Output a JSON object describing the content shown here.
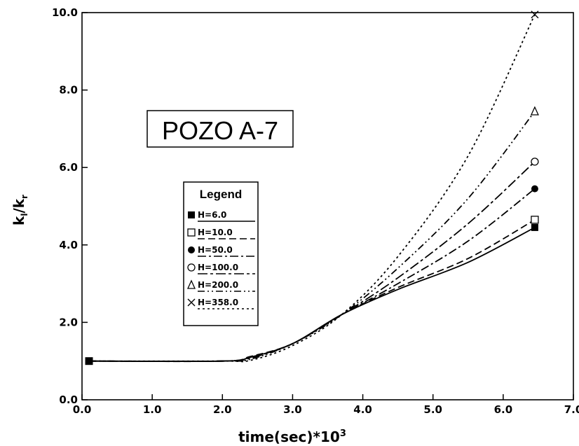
{
  "chart_data": {
    "type": "line",
    "title": "POZO A-7",
    "xlabel_main": "time(sec)*10",
    "xlabel_exp": "3",
    "ylabel_main": "k",
    "ylabel_sub1": "l",
    "ylabel_mid": "/k",
    "ylabel_sub2": "r",
    "xlim": [
      0.0,
      7.0
    ],
    "ylim": [
      0.0,
      10.0
    ],
    "xticks": [
      "0.0",
      "1.0",
      "2.0",
      "3.0",
      "4.0",
      "5.0",
      "6.0",
      "7.0"
    ],
    "yticks": [
      "0.0",
      "2.0",
      "4.0",
      "6.0",
      "8.0",
      "10.0"
    ],
    "grid": false,
    "legend_title": "Legend",
    "legend_position": "center-left",
    "series": [
      {
        "name": "H=6.0",
        "marker": "filled-square",
        "dash": "none",
        "x": [
          0.1,
          2.0,
          2.4,
          3.0,
          3.7,
          4.5,
          5.5,
          6.45
        ],
        "y": [
          1.0,
          1.0,
          1.1,
          1.45,
          2.2,
          2.85,
          3.55,
          4.45
        ]
      },
      {
        "name": "H=10.0",
        "marker": "open-square",
        "dash": "10 5",
        "x": [
          0.1,
          2.0,
          2.4,
          3.0,
          3.7,
          4.5,
          5.5,
          6.45
        ],
        "y": [
          1.0,
          1.0,
          1.12,
          1.45,
          2.2,
          2.9,
          3.65,
          4.65
        ]
      },
      {
        "name": "H=50.0",
        "marker": "filled-circle",
        "dash": "12 4 3 4",
        "x": [
          0.1,
          2.0,
          2.4,
          3.0,
          3.7,
          4.5,
          5.5,
          6.45
        ],
        "y": [
          1.0,
          1.0,
          1.1,
          1.45,
          2.2,
          3.0,
          4.1,
          5.45
        ]
      },
      {
        "name": "H=100.0",
        "marker": "open-circle",
        "dash": "14 4 4 4",
        "x": [
          0.1,
          2.0,
          2.4,
          3.0,
          3.7,
          4.5,
          5.5,
          6.45
        ],
        "y": [
          1.0,
          1.0,
          1.08,
          1.45,
          2.2,
          3.15,
          4.55,
          6.15
        ]
      },
      {
        "name": "H=200.0",
        "marker": "open-triangle",
        "dash": "10 4 2 4 2 4",
        "x": [
          0.1,
          2.0,
          2.4,
          3.0,
          3.7,
          4.5,
          5.5,
          6.45
        ],
        "y": [
          1.0,
          1.0,
          1.05,
          1.45,
          2.2,
          3.4,
          5.2,
          7.45
        ]
      },
      {
        "name": "H=358.0",
        "marker": "cross",
        "dash": "3 4",
        "x": [
          0.1,
          2.0,
          2.4,
          3.0,
          3.7,
          4.5,
          5.5,
          6.45
        ],
        "y": [
          1.0,
          1.0,
          1.02,
          1.4,
          2.2,
          3.7,
          6.3,
          9.95
        ]
      }
    ]
  }
}
